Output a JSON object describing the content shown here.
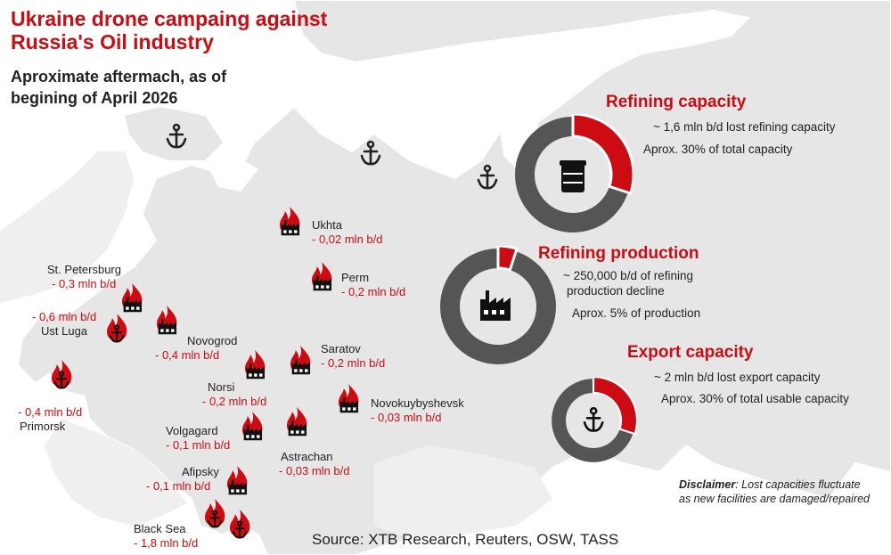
{
  "title": "Ukraine drone campaing against Russia's Oil industry",
  "subtitle": "Aproximate aftermach, as of begining of April 2026",
  "colors": {
    "accent": "#cc0c12",
    "dark": "#555555",
    "land": "#e6e6e6",
    "text": "#222222"
  },
  "sites": [
    {
      "name": "Ukhta",
      "value": "- 0,02 mln b/d",
      "kind": "refinery"
    },
    {
      "name": "Perm",
      "value": "- 0,2 mln b/d",
      "kind": "refinery"
    },
    {
      "name": "St. Petersburg",
      "value": "- 0,3 mln b/d",
      "kind": "refinery"
    },
    {
      "name": "Ust Luga",
      "value": "- 0,6 mln b/d",
      "kind": "port"
    },
    {
      "name": "Novogrod",
      "value": "- 0,4 mln b/d",
      "kind": "refinery"
    },
    {
      "name": "Primorsk",
      "value": "- 0,4 mln b/d",
      "kind": "port"
    },
    {
      "name": "Saratov",
      "value": "- 0,2 mln b/d",
      "kind": "refinery"
    },
    {
      "name": "Norsi",
      "value": "- 0,2 mln b/d",
      "kind": "refinery"
    },
    {
      "name": "Novokuybyshevsk",
      "value": "- 0,03 mln b/d",
      "kind": "refinery"
    },
    {
      "name": "Volgagard",
      "value": "- 0,1 mln b/d",
      "kind": "refinery"
    },
    {
      "name": "Astrachan",
      "value": "- 0,03 mln b/d",
      "kind": "refinery"
    },
    {
      "name": "Afipsky",
      "value": "- 0,1 mln b/d",
      "kind": "refinery"
    },
    {
      "name": "Black Sea",
      "value": "- 1,8 mln b/d",
      "kind": "port"
    }
  ],
  "ports_undamaged_icons": [
    "anchor-icon",
    "anchor-icon",
    "anchor-icon"
  ],
  "panels": [
    {
      "title": "Refining capacity",
      "line1": "~ 1,6 mln b/d lost refining capacity",
      "line2": "Aprox. 30% of total capacity",
      "share": 0.3,
      "icon": "oil-barrel-icon"
    },
    {
      "title": "Refining production",
      "line1": "~ 250,000 b/d of refining",
      "line1b": "production decline",
      "line2": "Aprox. 5% of production",
      "share": 0.05,
      "icon": "factory-icon"
    },
    {
      "title": "Export capacity",
      "line1": "~ 2 mln b/d lost export capacity",
      "line2": "Aprox. 30% of total usable capacity",
      "share": 0.3,
      "icon": "anchor-icon"
    }
  ],
  "disclaimer": {
    "label": "Disclaimer",
    "text": ": Lost capacities fluctuate as new facilities are damaged/repaired"
  },
  "source": "Source: XTB Research, Reuters, OSW, TASS"
}
